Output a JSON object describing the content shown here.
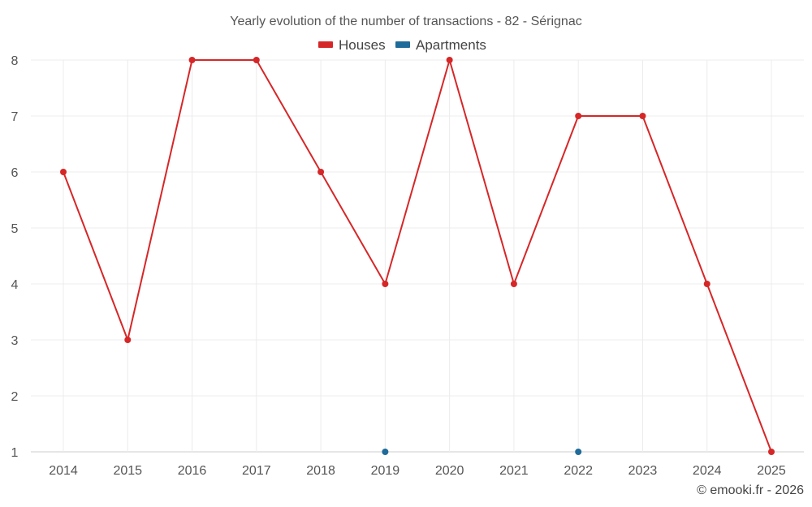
{
  "chart_data": {
    "type": "line",
    "title": "Yearly evolution of the number of transactions - 82 - Sérignac",
    "categories": [
      "2014",
      "2015",
      "2016",
      "2017",
      "2018",
      "2019",
      "2020",
      "2021",
      "2022",
      "2023",
      "2024",
      "2025"
    ],
    "series": [
      {
        "name": "Houses",
        "color": "#d62728",
        "values": [
          6,
          3,
          8,
          8,
          6,
          4,
          8,
          4,
          7,
          7,
          4,
          1
        ]
      },
      {
        "name": "Apartments",
        "color": "#1f6b9a",
        "values": [
          null,
          null,
          null,
          null,
          null,
          1,
          null,
          null,
          1,
          null,
          null,
          null
        ]
      }
    ],
    "yticks": [
      "1",
      "2",
      "3",
      "4",
      "5",
      "6",
      "7",
      "8"
    ],
    "ylim": [
      1,
      8
    ],
    "grid": true,
    "legend_position": "top-center",
    "xlabel": "",
    "ylabel": ""
  },
  "credit": "© emooki.fr - 2026"
}
